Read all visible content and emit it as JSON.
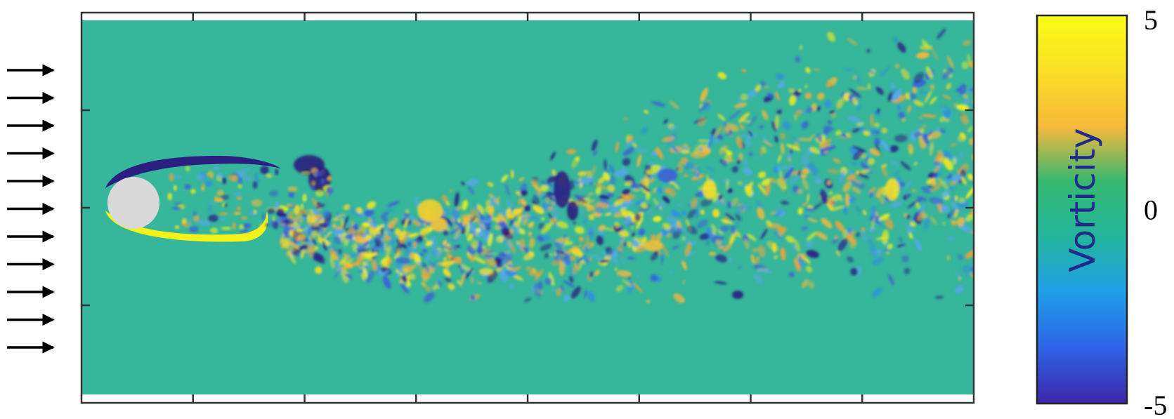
{
  "chart_data": {
    "type": "heatmap",
    "title": "",
    "xlabel": "",
    "ylabel": "",
    "field": "vorticity",
    "colorbar": {
      "label": "Vorticity",
      "min": -5,
      "max": 5,
      "ticks": [
        {
          "value": 5,
          "label": "5"
        },
        {
          "value": 0,
          "label": "0"
        },
        {
          "value": -5,
          "label": "-5"
        }
      ],
      "colormap": [
        "#3e26a8",
        "#2e63e6",
        "#1f9ee8",
        "#23b59c",
        "#35b870",
        "#f7b93a",
        "#fadf26",
        "#f9fb15"
      ],
      "placement": "right"
    },
    "x_tick_count": 9,
    "y_tick_count": 5,
    "tick_labels_shown": false,
    "background_value": 0,
    "background_color": "#36b69a",
    "obstacle": {
      "shape": "circle",
      "color": "#d9d9d9"
    },
    "inflow": {
      "direction": "left-to-right",
      "arrow_count": 11
    }
  }
}
